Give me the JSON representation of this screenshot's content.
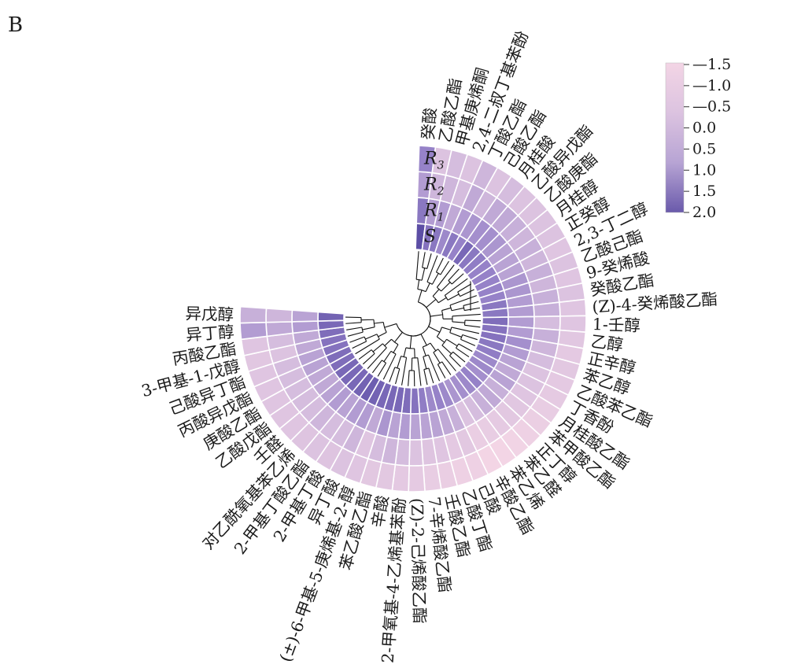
{
  "panel_label": "B",
  "chart_data": {
    "type": "heatmap",
    "layout": "circular",
    "rings": [
      "S",
      "R1",
      "R2",
      "R3"
    ],
    "ring_labels": [
      {
        "base": "S",
        "sub": ""
      },
      {
        "base": "R",
        "sub": "1"
      },
      {
        "base": "R",
        "sub": "2"
      },
      {
        "base": "R",
        "sub": "3"
      }
    ],
    "compounds": [
      "癸酸",
      "乙酸乙酯",
      "甲基庚烯酮",
      "2,4-二叔丁基苯酚",
      "丁酸乙酯",
      "己酸乙酯",
      "月桂酸",
      "乙酸异戊酯",
      "乙酸庚酯",
      "月桂醇",
      "正癸醇",
      "2,3-丁二醇",
      "乙酸己酯",
      "9-癸烯酸",
      "癸酸乙酯",
      "(Z)-4-癸烯酸乙酯",
      "1-壬醇",
      "乙醇",
      "正辛醇",
      "苯乙醇",
      "乙酸苯乙酯",
      "丁香酚",
      "月桂酸乙酯",
      "苯甲酸乙酯",
      "正丁醇",
      "苯乙醛",
      "苯乙烯",
      "辛酸乙酯",
      "己酸",
      "乙酸丁酯",
      "壬酸乙酯",
      "7-辛烯酸乙酯",
      "(Z)-2-己烯酸乙酯",
      "2-甲氧基-4-乙烯基苯酚",
      "辛酸",
      "苯乙酸乙酯",
      "(±)-6-甲基-5-庚烯基-2-醇",
      "异丁酸",
      "2-甲基丁酸",
      "2-甲基丁酸乙酯",
      "对乙酰氧基苯乙烯",
      "壬醛",
      "乙酸戊酯",
      "庚酸乙酯",
      "丙酸异戊酯",
      "己酸异丁酯",
      "3-甲基-1-戊醇",
      "丙酸乙酯",
      "异丁醇",
      "异戊醇"
    ],
    "values": [
      [
        2.0,
        1.2,
        0.6,
        1.0
      ],
      [
        1.3,
        0.6,
        0.2,
        0.0
      ],
      [
        1.2,
        0.6,
        0.2,
        0.1
      ],
      [
        0.9,
        0.4,
        0.1,
        0.0
      ],
      [
        1.2,
        0.6,
        0.4,
        0.2
      ],
      [
        1.0,
        0.7,
        0.2,
        0.0
      ],
      [
        1.5,
        0.8,
        0.4,
        0.1
      ],
      [
        1.2,
        0.8,
        0.4,
        0.0
      ],
      [
        1.1,
        0.7,
        0.3,
        0.0
      ],
      [
        1.0,
        0.5,
        0.2,
        0.0
      ],
      [
        1.0,
        0.5,
        0.3,
        0.0
      ],
      [
        1.0,
        0.5,
        0.2,
        -0.2
      ],
      [
        1.0,
        0.7,
        0.3,
        0.0
      ],
      [
        1.0,
        0.7,
        0.2,
        -0.2
      ],
      [
        1.2,
        0.6,
        0.3,
        0.0
      ],
      [
        1.2,
        0.6,
        0.3,
        -0.2
      ],
      [
        1.4,
        0.6,
        0.1,
        -0.2
      ],
      [
        1.3,
        0.6,
        0.3,
        -0.3
      ],
      [
        1.3,
        0.8,
        0.2,
        -0.5
      ],
      [
        1.2,
        0.6,
        0.1,
        -0.4
      ],
      [
        1.1,
        0.5,
        0.0,
        -0.5
      ],
      [
        0.9,
        0.4,
        0.0,
        -0.6
      ],
      [
        0.9,
        0.5,
        -0.2,
        -0.8
      ],
      [
        0.8,
        0.3,
        -0.3,
        -1.0
      ],
      [
        1.0,
        0.4,
        -0.4,
        -1.2
      ],
      [
        0.9,
        0.3,
        -0.6,
        -1.4
      ],
      [
        0.8,
        0.1,
        -0.8,
        -1.5
      ],
      [
        0.7,
        0.0,
        -0.9,
        -1.5
      ],
      [
        0.9,
        0.3,
        -0.4,
        -1.2
      ],
      [
        1.0,
        0.4,
        -0.5,
        -1.2
      ],
      [
        0.9,
        0.5,
        -0.2,
        -0.9
      ],
      [
        1.1,
        0.5,
        -0.1,
        -0.8
      ],
      [
        1.3,
        0.5,
        0.0,
        -0.6
      ],
      [
        1.4,
        0.6,
        0.1,
        -0.5
      ],
      [
        1.5,
        0.5,
        0.2,
        -0.4
      ],
      [
        1.5,
        0.7,
        0.1,
        -0.4
      ],
      [
        1.5,
        0.4,
        -0.2,
        -0.2
      ],
      [
        1.6,
        0.6,
        0.2,
        0.0
      ],
      [
        1.7,
        0.6,
        0.1,
        -0.1
      ],
      [
        1.6,
        0.5,
        0.1,
        0.0
      ],
      [
        1.5,
        0.6,
        0.2,
        -0.1
      ],
      [
        1.5,
        0.5,
        0.1,
        -0.2
      ],
      [
        1.5,
        0.4,
        0.1,
        -0.2
      ],
      [
        1.4,
        0.4,
        0.1,
        -0.2
      ],
      [
        1.4,
        0.5,
        0.1,
        -0.2
      ],
      [
        1.3,
        0.5,
        0.1,
        -0.2
      ],
      [
        1.3,
        0.4,
        0.0,
        -0.3
      ],
      [
        1.4,
        0.4,
        0.1,
        -0.2
      ],
      [
        1.5,
        0.6,
        0.4,
        0.6
      ],
      [
        1.6,
        0.5,
        0.2,
        0.3
      ]
    ],
    "legend": {
      "ticks": [
        "1.5",
        "1.0",
        "0.5",
        "0.0",
        "0.5",
        "1.0",
        "1.5",
        "2.0"
      ],
      "colors": [
        "#f3d5e5",
        "#dcc3e0",
        "#b7a4d4",
        "#6a5aab"
      ],
      "placement": "top-right"
    }
  }
}
